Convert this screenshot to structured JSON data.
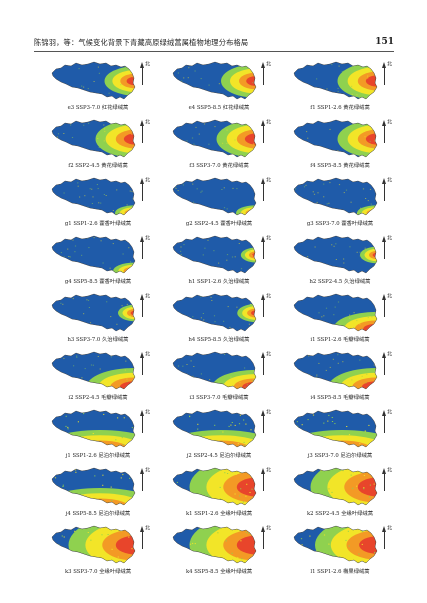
{
  "header": {
    "title": "陈锦羽，等：气候变化背景下青藏高原绿绒蒿属植物地理分布格局",
    "page_number": "151"
  },
  "map_colors": {
    "unsuitable": "#1f5ba9",
    "low": "#8fd14f",
    "medium": "#f2e528",
    "high": "#f39a25",
    "highest": "#e8452b"
  },
  "north_label": "北",
  "panels": [
    {
      "caption": "e3  SSP3-7.0 红花绿绒蒿",
      "suit": 0.35,
      "focus": "east"
    },
    {
      "caption": "e4  SSP5-8.5 红花绿绒蒿",
      "suit": 0.4,
      "focus": "east"
    },
    {
      "caption": "f1  SSP1-2.6 黄花绿绒蒿",
      "suit": 0.45,
      "focus": "east"
    },
    {
      "caption": "f2  SSP2-4.5 黄花绿绒蒿",
      "suit": 0.45,
      "focus": "east"
    },
    {
      "caption": "f3  SSP3-7.0 黄花绿绒蒿",
      "suit": 0.45,
      "focus": "east"
    },
    {
      "caption": "f4  SSP5-8.5 黄花绿绒蒿",
      "suit": 0.45,
      "focus": "east"
    },
    {
      "caption": "g1  SSP1-2.6 藿香叶绿绒蒿",
      "suit": 0.2,
      "focus": "southeast"
    },
    {
      "caption": "g2  SSP2-4.5 藿香叶绿绒蒿",
      "suit": 0.2,
      "focus": "southeast"
    },
    {
      "caption": "g3  SSP3-7.0 藿香叶绿绒蒿",
      "suit": 0.2,
      "focus": "southeast"
    },
    {
      "caption": "g4  SSP5-8.5 藿香叶绿绒蒿",
      "suit": 0.22,
      "focus": "southeast"
    },
    {
      "caption": "h1  SSP1-2.6 久治绿绒蒿",
      "suit": 0.18,
      "focus": "east"
    },
    {
      "caption": "h2  SSP2-4.5 久治绿绒蒿",
      "suit": 0.2,
      "focus": "east"
    },
    {
      "caption": "h3  SSP3-7.0 久治绿绒蒿",
      "suit": 0.2,
      "focus": "east"
    },
    {
      "caption": "h4  SSP5-8.5 久治绿绒蒿",
      "suit": 0.22,
      "focus": "east"
    },
    {
      "caption": "i1  SSP1-2.6 毛瓣绿绒蒿",
      "suit": 0.45,
      "focus": "southeast"
    },
    {
      "caption": "i2  SSP2-4.5 毛瓣绿绒蒿",
      "suit": 0.5,
      "focus": "southeast"
    },
    {
      "caption": "i3  SSP3-7.0 毛瓣绿绒蒿",
      "suit": 0.45,
      "focus": "southeast"
    },
    {
      "caption": "i4  SSP5-8.5 毛瓣绿绒蒿",
      "suit": 0.5,
      "focus": "southeast"
    },
    {
      "caption": "j1  SSP1-2.6 尼泊尔绿绒蒿",
      "suit": 0.7,
      "focus": "south"
    },
    {
      "caption": "j2  SSP2-4.5 尼泊尔绿绒蒿",
      "suit": 0.7,
      "focus": "south"
    },
    {
      "caption": "j3  SSP3-7.0 尼泊尔绿绒蒿",
      "suit": 0.7,
      "focus": "south"
    },
    {
      "caption": "j4  SSP5-8.5 尼泊尔绿绒蒿",
      "suit": 0.7,
      "focus": "south"
    },
    {
      "caption": "k1  SSP1-2.6 全缘叶绿绒蒿",
      "suit": 0.75,
      "focus": "east"
    },
    {
      "caption": "k2  SSP2-4.5 全缘叶绿绒蒿",
      "suit": 0.75,
      "focus": "east"
    },
    {
      "caption": "k3  SSP3-7.0 全缘叶绿绒蒿",
      "suit": 0.75,
      "focus": "east"
    },
    {
      "caption": "k4  SSP5-8.5 全缘叶绿绒蒿",
      "suit": 0.75,
      "focus": "east"
    },
    {
      "caption": "l1  SSP1-2.6 椭果绿绒蒿",
      "suit": 0.7,
      "focus": "east"
    }
  ]
}
